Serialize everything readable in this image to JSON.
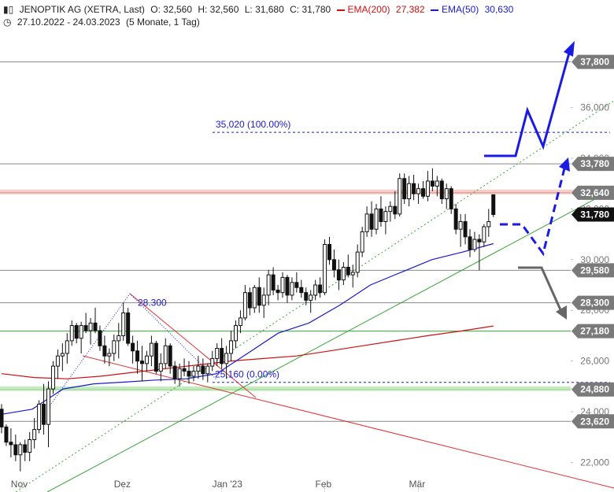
{
  "header": {
    "chart_icon": "candlestick-icon",
    "symbol": "JENOPTIK AG (XETRA, Last)",
    "open": "O: 32,560",
    "high": "H: 32,560",
    "low": "L: 31,680",
    "close": "C: 31,780",
    "ema200_label": "EMA(200)",
    "ema200_value": "27,382",
    "ema50_label": "EMA(50)",
    "ema50_value": "30,630",
    "clock_icon": "clock-icon",
    "date_range": "27.10.2022 - 24.03.2023",
    "period": "(5 Monate, 1 Tag)"
  },
  "colors": {
    "ema200": "#cc1111",
    "ema50": "#1a1acc",
    "candle": "#111111",
    "trend_green": "#3aa53a",
    "projection_blue": "#1a1ae6",
    "projection_gray": "#666666",
    "tag_gray": "#7a7a7a",
    "tag_black": "#111111"
  },
  "chart_data": {
    "type": "candlestick",
    "ylim": [
      21300,
      39000
    ],
    "y_ticks": [
      "22,000",
      "24,000",
      "26,000",
      "28,000",
      "30,000",
      "32,000",
      "34,000",
      "36,000"
    ],
    "x_ticks": [
      {
        "label": "Nov",
        "index": 4
      },
      {
        "label": "Dez",
        "index": 26
      },
      {
        "label": "Jan '23",
        "index": 47
      },
      {
        "label": "Feb",
        "index": 69
      },
      {
        "label": "Mär",
        "index": 89
      }
    ],
    "price_tags": [
      {
        "label": "37,800",
        "value": 37800,
        "style": "gray"
      },
      {
        "label": "33,780",
        "value": 33780,
        "style": "gray"
      },
      {
        "label": "32,640",
        "value": 32640,
        "style": "gray"
      },
      {
        "label": "31,780",
        "value": 31780,
        "style": "black"
      },
      {
        "label": "29,580",
        "value": 29580,
        "style": "gray"
      },
      {
        "label": "28,300",
        "value": 28300,
        "style": "gray"
      },
      {
        "label": "27,180",
        "value": 27180,
        "style": "gray"
      },
      {
        "label": "24,880",
        "value": 24880,
        "style": "gray"
      },
      {
        "label": "23,620",
        "value": 23620,
        "style": "gray"
      }
    ],
    "horizontal_levels": [
      37800,
      33780,
      32640,
      29580,
      28300,
      27180,
      24880,
      23620
    ],
    "fib_extension": {
      "label_top": "35,020 (100.00%)",
      "value_top": 35020,
      "label_bottom": "25,160 (0.00%)",
      "value_bottom": 25160,
      "label_peak": "28.300",
      "value_peak": 28300
    },
    "ohlc": [
      [
        24100,
        24300,
        23150,
        23400
      ],
      [
        23400,
        23500,
        22650,
        22800
      ],
      [
        22800,
        23350,
        22200,
        22700
      ],
      [
        22700,
        23100,
        22050,
        22300
      ],
      [
        22300,
        22800,
        21650,
        22700
      ],
      [
        22700,
        22900,
        22050,
        22400
      ],
      [
        22400,
        23200,
        22050,
        22900
      ],
      [
        22900,
        23750,
        22550,
        23300
      ],
      [
        23300,
        24450,
        23150,
        24300
      ],
      [
        24300,
        25100,
        23100,
        23500
      ],
      [
        23500,
        25200,
        22600,
        24900
      ],
      [
        24900,
        26000,
        24700,
        25800
      ],
      [
        25800,
        26450,
        25300,
        26200
      ],
      [
        26200,
        26700,
        25600,
        26300
      ],
      [
        26300,
        27100,
        25900,
        26800
      ],
      [
        26800,
        27600,
        26600,
        27400
      ],
      [
        27400,
        27500,
        26700,
        26900
      ],
      [
        26900,
        27550,
        26300,
        27400
      ],
      [
        27400,
        27900,
        27100,
        27200
      ],
      [
        27200,
        27700,
        26650,
        27500
      ],
      [
        27500,
        28100,
        27100,
        27200
      ],
      [
        27200,
        27400,
        26400,
        26600
      ],
      [
        26600,
        27000,
        25900,
        26200
      ],
      [
        26200,
        26500,
        25800,
        26300
      ],
      [
        26300,
        27050,
        26000,
        26800
      ],
      [
        26800,
        27500,
        26100,
        27000
      ],
      [
        27000,
        28300,
        26800,
        27900
      ],
      [
        27900,
        28100,
        26600,
        26700
      ],
      [
        26700,
        27000,
        25900,
        26400
      ],
      [
        26400,
        26800,
        25500,
        26000
      ],
      [
        26000,
        26600,
        25200,
        25900
      ],
      [
        25900,
        26400,
        25600,
        26200
      ],
      [
        26200,
        27000,
        25800,
        26700
      ],
      [
        26700,
        26800,
        25500,
        25600
      ],
      [
        25600,
        26300,
        25200,
        25900
      ],
      [
        25900,
        26900,
        25700,
        26600
      ],
      [
        26600,
        26700,
        25500,
        25800
      ],
      [
        25800,
        26000,
        25100,
        25300
      ],
      [
        25300,
        25900,
        25000,
        25700
      ],
      [
        25700,
        26100,
        25400,
        25600
      ],
      [
        25600,
        26000,
        25100,
        25400
      ],
      [
        25400,
        25800,
        25200,
        25600
      ],
      [
        25600,
        26200,
        25300,
        25800
      ],
      [
        25800,
        26100,
        25250,
        25500
      ],
      [
        25500,
        25900,
        25160,
        25800
      ],
      [
        25800,
        26400,
        25600,
        26100
      ],
      [
        26100,
        26700,
        25800,
        26500
      ],
      [
        26500,
        26900,
        25700,
        25900
      ],
      [
        25900,
        26600,
        25300,
        26300
      ],
      [
        26300,
        27200,
        26000,
        26800
      ],
      [
        26800,
        27600,
        26500,
        27400
      ],
      [
        27400,
        28000,
        27100,
        27700
      ],
      [
        27700,
        29000,
        27600,
        28700
      ],
      [
        28700,
        28900,
        27800,
        28100
      ],
      [
        28100,
        29000,
        27900,
        28900
      ],
      [
        28900,
        29300,
        27900,
        28200
      ],
      [
        28200,
        28900,
        27700,
        28600
      ],
      [
        28600,
        29600,
        28200,
        29400
      ],
      [
        29400,
        29700,
        28600,
        28800
      ],
      [
        28800,
        29000,
        28400,
        28700
      ],
      [
        28700,
        29500,
        28500,
        29300
      ],
      [
        29300,
        29400,
        28300,
        28600
      ],
      [
        28600,
        29300,
        28400,
        29100
      ],
      [
        29100,
        29500,
        28700,
        28900
      ],
      [
        28900,
        29200,
        28500,
        28700
      ],
      [
        28700,
        28900,
        28200,
        28400
      ],
      [
        28400,
        28800,
        27900,
        28600
      ],
      [
        28600,
        29200,
        28400,
        29000
      ],
      [
        29000,
        29300,
        28500,
        28700
      ],
      [
        28700,
        30800,
        28600,
        30600
      ],
      [
        30600,
        30900,
        29800,
        30000
      ],
      [
        30000,
        30400,
        29300,
        29600
      ],
      [
        29600,
        30000,
        28800,
        29200
      ],
      [
        29200,
        29900,
        29000,
        29700
      ],
      [
        29700,
        30200,
        29300,
        29400
      ],
      [
        29400,
        29800,
        28900,
        29500
      ],
      [
        29500,
        30600,
        29300,
        30300
      ],
      [
        30300,
        31300,
        30100,
        31100
      ],
      [
        31100,
        32100,
        30900,
        31800
      ],
      [
        31800,
        32300,
        30900,
        31200
      ],
      [
        31200,
        32200,
        31000,
        32000
      ],
      [
        32000,
        32500,
        31300,
        31500
      ],
      [
        31500,
        32100,
        31000,
        31900
      ],
      [
        31900,
        32300,
        31500,
        32100
      ],
      [
        32100,
        32700,
        31600,
        31800
      ],
      [
        31800,
        33400,
        31700,
        33200
      ],
      [
        33200,
        33400,
        32200,
        32400
      ],
      [
        32400,
        33300,
        32100,
        33000
      ],
      [
        33000,
        33350,
        32350,
        32600
      ],
      [
        32600,
        33000,
        32200,
        32800
      ],
      [
        32800,
        33100,
        32400,
        32500
      ],
      [
        32500,
        33500,
        32300,
        33100
      ],
      [
        33100,
        33600,
        32700,
        32900
      ],
      [
        32900,
        33300,
        32500,
        33100
      ],
      [
        33100,
        33200,
        32200,
        32400
      ],
      [
        32400,
        33000,
        32000,
        32800
      ],
      [
        32800,
        32900,
        31800,
        32000
      ],
      [
        32000,
        32200,
        31000,
        31200
      ],
      [
        31200,
        31800,
        30500,
        31500
      ],
      [
        31500,
        31800,
        30600,
        30900
      ],
      [
        30900,
        31200,
        30100,
        30400
      ],
      [
        30400,
        31100,
        30300,
        30800
      ],
      [
        30800,
        31000,
        29580,
        30700
      ],
      [
        30700,
        31400,
        30500,
        31300
      ],
      [
        31300,
        32000,
        30900,
        31500
      ],
      [
        32560,
        32560,
        31680,
        31780
      ]
    ],
    "ema200": [
      25500,
      25350,
      25300,
      25400,
      25550,
      25700,
      25850,
      26000,
      26100,
      26200,
      26400,
      26600,
      26800,
      27000,
      27180,
      27382
    ],
    "ema50": [
      23900,
      24100,
      24900,
      25100,
      25170,
      25250,
      25300,
      25500,
      26300,
      27100,
      27500,
      28200,
      29000,
      29500,
      30000,
      30300,
      30630
    ]
  }
}
